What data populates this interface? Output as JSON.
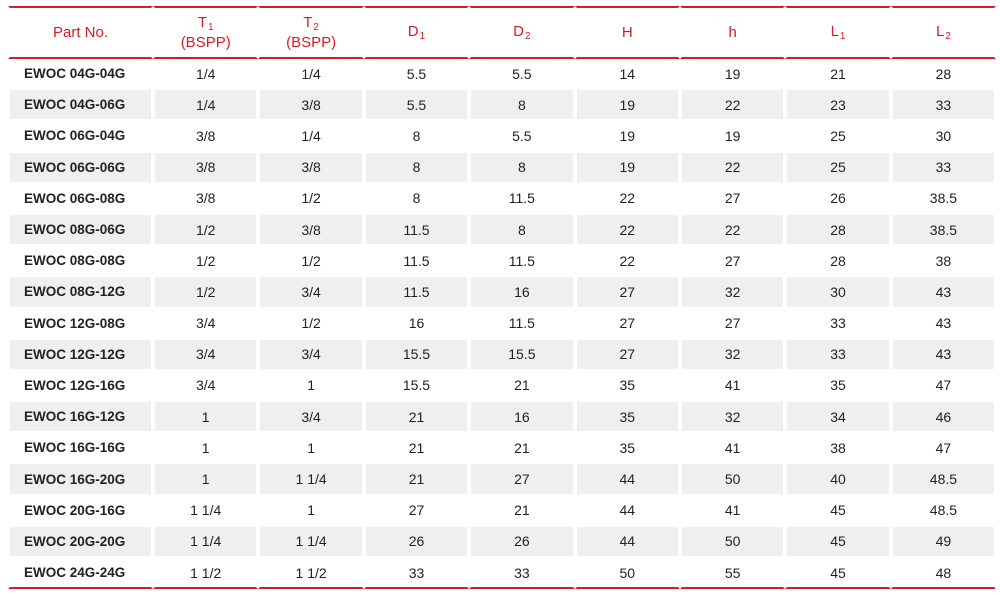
{
  "table": {
    "headers": [
      {
        "main": "Part No.",
        "sub": "",
        "line2": ""
      },
      {
        "main": "T",
        "sub": "1",
        "line2": "(BSPP)"
      },
      {
        "main": "T",
        "sub": "2",
        "line2": "(BSPP)"
      },
      {
        "main": "D",
        "sub": "1",
        "line2": ""
      },
      {
        "main": "D",
        "sub": "2",
        "line2": ""
      },
      {
        "main": "H",
        "sub": "",
        "line2": ""
      },
      {
        "main": "h",
        "sub": "",
        "line2": ""
      },
      {
        "main": "L",
        "sub": "1",
        "line2": ""
      },
      {
        "main": "L",
        "sub": "2",
        "line2": ""
      }
    ],
    "rows": [
      [
        "EWOC 04G-04G",
        "1/4",
        "1/4",
        "5.5",
        "5.5",
        "14",
        "19",
        "21",
        "28"
      ],
      [
        "EWOC 04G-06G",
        "1/4",
        "3/8",
        "5.5",
        "8",
        "19",
        "22",
        "23",
        "33"
      ],
      [
        "EWOC 06G-04G",
        "3/8",
        "1/4",
        "8",
        "5.5",
        "19",
        "19",
        "25",
        "30"
      ],
      [
        "EWOC 06G-06G",
        "3/8",
        "3/8",
        "8",
        "8",
        "19",
        "22",
        "25",
        "33"
      ],
      [
        "EWOC 06G-08G",
        "3/8",
        "1/2",
        "8",
        "11.5",
        "22",
        "27",
        "26",
        "38.5"
      ],
      [
        "EWOC 08G-06G",
        "1/2",
        "3/8",
        "11.5",
        "8",
        "22",
        "22",
        "28",
        "38.5"
      ],
      [
        "EWOC 08G-08G",
        "1/2",
        "1/2",
        "11.5",
        "11.5",
        "22",
        "27",
        "28",
        "38"
      ],
      [
        "EWOC 08G-12G",
        "1/2",
        "3/4",
        "11.5",
        "16",
        "27",
        "32",
        "30",
        "43"
      ],
      [
        "EWOC 12G-08G",
        "3/4",
        "1/2",
        "16",
        "11.5",
        "27",
        "27",
        "33",
        "43"
      ],
      [
        "EWOC 12G-12G",
        "3/4",
        "3/4",
        "15.5",
        "15.5",
        "27",
        "32",
        "33",
        "43"
      ],
      [
        "EWOC 12G-16G",
        "3/4",
        "1",
        "15.5",
        "21",
        "35",
        "41",
        "35",
        "47"
      ],
      [
        "EWOC 16G-12G",
        "1",
        "3/4",
        "21",
        "16",
        "35",
        "32",
        "34",
        "46"
      ],
      [
        "EWOC 16G-16G",
        "1",
        "1",
        "21",
        "21",
        "35",
        "41",
        "38",
        "47"
      ],
      [
        "EWOC 16G-20G",
        "1",
        "1 1/4",
        "21",
        "27",
        "44",
        "50",
        "40",
        "48.5"
      ],
      [
        "EWOC 20G-16G",
        "1 1/4",
        "1",
        "27",
        "21",
        "44",
        "41",
        "45",
        "48.5"
      ],
      [
        "EWOC 20G-20G",
        "1 1/4",
        "1 1/4",
        "26",
        "26",
        "44",
        "50",
        "45",
        "49"
      ],
      [
        "EWOC 24G-24G",
        "1 1/2",
        "1 1/2",
        "33",
        "33",
        "50",
        "55",
        "45",
        "48"
      ]
    ]
  },
  "colors": {
    "accent": "#d21f26",
    "stripe": "#efefef",
    "text": "#222222"
  }
}
